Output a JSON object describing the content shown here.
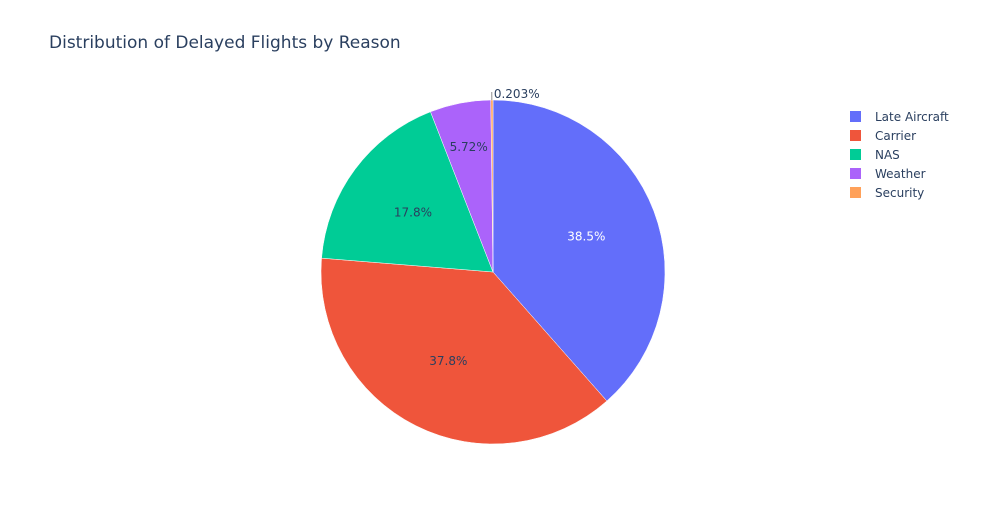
{
  "chart_data": {
    "type": "pie",
    "title": "Distribution of Delayed Flights by Reason",
    "slices": [
      {
        "label": "Late Aircraft",
        "value": 38.5,
        "text": "38.5%",
        "color": "#636efa",
        "text_color": "#ffffff"
      },
      {
        "label": "Carrier",
        "value": 37.8,
        "text": "37.8%",
        "color": "#ef553b",
        "text_color": "#2a3f5f"
      },
      {
        "label": "NAS",
        "value": 17.8,
        "text": "17.8%",
        "color": "#00cc96",
        "text_color": "#2a3f5f"
      },
      {
        "label": "Weather",
        "value": 5.72,
        "text": "5.72%",
        "color": "#ab63fa",
        "text_color": "#2a3f5f"
      },
      {
        "label": "Security",
        "value": 0.203,
        "text": "0.203%",
        "color": "#ffa15a",
        "text_color": "#2a3f5f"
      }
    ],
    "legend_placement": "top-right",
    "direction": "clockwise",
    "start": "top"
  }
}
